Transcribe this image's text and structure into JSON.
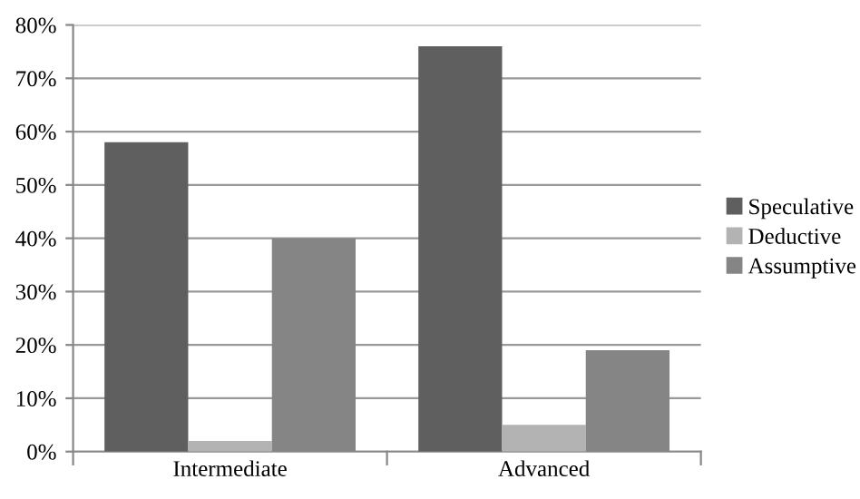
{
  "chart_data": {
    "type": "bar",
    "categories": [
      "Intermediate",
      "Advanced"
    ],
    "series": [
      {
        "name": "Speculative",
        "color": "#5f5f5f",
        "values": [
          58,
          76
        ]
      },
      {
        "name": "Deductive",
        "color": "#b3b3b3",
        "values": [
          2,
          5
        ]
      },
      {
        "name": "Assumptive",
        "color": "#858585",
        "values": [
          40,
          19
        ]
      }
    ],
    "ylim": [
      0,
      80
    ],
    "yticks": [
      {
        "value": 0,
        "label": "0%"
      },
      {
        "value": 10,
        "label": "10%"
      },
      {
        "value": 20,
        "label": "20%"
      },
      {
        "value": 30,
        "label": "30%"
      },
      {
        "value": 40,
        "label": "40%"
      },
      {
        "value": 50,
        "label": "50%"
      },
      {
        "value": 60,
        "label": "60%"
      },
      {
        "value": 70,
        "label": "70%"
      },
      {
        "value": 80,
        "label": "80%"
      }
    ],
    "grid": "y",
    "legend": "right"
  }
}
